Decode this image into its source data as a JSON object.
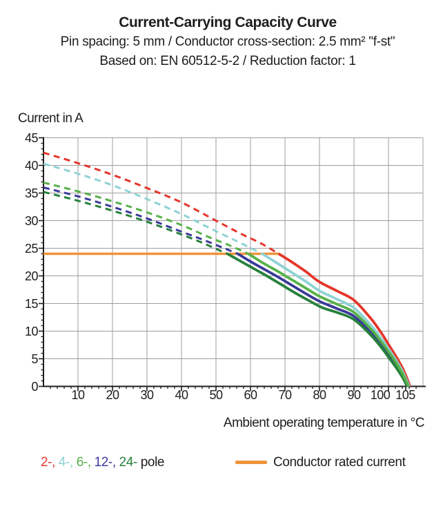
{
  "header": {
    "title": "Current-Carrying Capacity Curve",
    "subtitle1": "Pin spacing: 5 mm / Conductor cross-section: 2.5 mm² \"f-st\"",
    "subtitle2": "Based on: EN 60512-5-2 / Reduction factor: 1"
  },
  "chart_data": {
    "type": "line",
    "title": "Current-Carrying Capacity Curve",
    "ylabel": "Current in A",
    "xlabel": "Ambient operating temperature in °C",
    "xlim": [
      0,
      110
    ],
    "ylim": [
      0,
      45
    ],
    "grid": true,
    "x_ticks": [
      10,
      20,
      30,
      40,
      50,
      60,
      70,
      80,
      90,
      100,
      105
    ],
    "y_ticks": [
      0,
      5,
      10,
      15,
      20,
      25,
      30,
      35,
      40,
      45
    ],
    "axis_color": "#1d1d1b",
    "grid_color": "#9d9d9c",
    "rated_current": {
      "label": "Conductor rated current",
      "value_a": 24,
      "x_start": 0,
      "x_end": 68.4,
      "color": "#F0943A"
    },
    "series": [
      {
        "name": "2-pole",
        "legend_label": "2-",
        "color": "#E5362B",
        "dashed_points": [
          [
            0,
            42.3
          ],
          [
            10,
            40.4
          ],
          [
            20,
            38.3
          ],
          [
            30,
            35.9
          ],
          [
            40,
            33.3
          ],
          [
            50,
            30.0
          ],
          [
            57,
            27.7
          ],
          [
            63,
            25.9
          ],
          [
            68.2,
            24
          ]
        ],
        "solid_points": [
          [
            68.2,
            24
          ],
          [
            72,
            22.5
          ],
          [
            76,
            20.8
          ],
          [
            80,
            18.9
          ],
          [
            85,
            17.3
          ],
          [
            90,
            15.6
          ],
          [
            95,
            12.2
          ],
          [
            98,
            9.6
          ],
          [
            100,
            7.6
          ],
          [
            102,
            5.6
          ],
          [
            104,
            3.4
          ],
          [
            105.4,
            1.4
          ],
          [
            106.2,
            0
          ]
        ]
      },
      {
        "name": "4-pole",
        "legend_label": "4-",
        "color": "#8FD2D4",
        "dashed_points": [
          [
            0,
            40.3
          ],
          [
            10,
            38.5
          ],
          [
            20,
            36.4
          ],
          [
            30,
            33.9
          ],
          [
            40,
            31.2
          ],
          [
            48,
            28.7
          ],
          [
            56,
            26.3
          ],
          [
            63.4,
            24
          ]
        ],
        "solid_points": [
          [
            63.4,
            24
          ],
          [
            68,
            22.2
          ],
          [
            72,
            20.6
          ],
          [
            76,
            19.0
          ],
          [
            80,
            17.3
          ],
          [
            85,
            15.8
          ],
          [
            90,
            14.2
          ],
          [
            95,
            11.0
          ],
          [
            98,
            8.6
          ],
          [
            100,
            6.8
          ],
          [
            102,
            4.9
          ],
          [
            104,
            2.8
          ],
          [
            105.3,
            1.0
          ],
          [
            106,
            0
          ]
        ]
      },
      {
        "name": "6-pole",
        "legend_label": "6-",
        "color": "#56B14A",
        "dashed_points": [
          [
            0,
            36.9
          ],
          [
            10,
            35.3
          ],
          [
            20,
            33.5
          ],
          [
            30,
            31.5
          ],
          [
            40,
            29.2
          ],
          [
            48,
            27.0
          ],
          [
            54,
            25.5
          ],
          [
            59.4,
            24
          ]
        ],
        "solid_points": [
          [
            59.4,
            24
          ],
          [
            64,
            22.2
          ],
          [
            68,
            20.8
          ],
          [
            72,
            19.3
          ],
          [
            76,
            17.8
          ],
          [
            80,
            16.3
          ],
          [
            85,
            14.9
          ],
          [
            90,
            13.4
          ],
          [
            95,
            10.3
          ],
          [
            98,
            8.0
          ],
          [
            100,
            6.3
          ],
          [
            102,
            4.5
          ],
          [
            104,
            2.4
          ],
          [
            105.2,
            0.8
          ],
          [
            105.8,
            0
          ]
        ]
      },
      {
        "name": "12-pole",
        "legend_label": "12-",
        "color": "#3A3A9A",
        "dashed_points": [
          [
            0,
            36.0
          ],
          [
            10,
            34.4
          ],
          [
            20,
            32.5
          ],
          [
            30,
            30.4
          ],
          [
            40,
            28.0
          ],
          [
            46,
            26.6
          ],
          [
            52,
            25.1
          ],
          [
            56.3,
            24
          ]
        ],
        "solid_points": [
          [
            56.3,
            24
          ],
          [
            60,
            22.6
          ],
          [
            64,
            21.2
          ],
          [
            68,
            19.8
          ],
          [
            72,
            18.3
          ],
          [
            76,
            16.8
          ],
          [
            80,
            15.4
          ],
          [
            85,
            14.1
          ],
          [
            90,
            12.7
          ],
          [
            95,
            9.7
          ],
          [
            98,
            7.5
          ],
          [
            100,
            5.8
          ],
          [
            102,
            4.0
          ],
          [
            104,
            2.0
          ],
          [
            105.6,
            0
          ]
        ]
      },
      {
        "name": "24-pole",
        "legend_label": "24-",
        "color": "#27813C",
        "dashed_points": [
          [
            0,
            35.2
          ],
          [
            10,
            33.6
          ],
          [
            20,
            31.8
          ],
          [
            30,
            29.8
          ],
          [
            40,
            27.5
          ],
          [
            46,
            26.0
          ],
          [
            50,
            24.9
          ],
          [
            53.3,
            24
          ]
        ],
        "solid_points": [
          [
            53.3,
            24
          ],
          [
            57,
            22.7
          ],
          [
            61,
            21.3
          ],
          [
            65,
            19.9
          ],
          [
            69,
            18.4
          ],
          [
            73,
            16.9
          ],
          [
            77,
            15.5
          ],
          [
            81,
            14.2
          ],
          [
            85,
            13.4
          ],
          [
            90,
            12.1
          ],
          [
            95,
            9.2
          ],
          [
            98,
            7.0
          ],
          [
            100,
            5.3
          ],
          [
            102,
            3.6
          ],
          [
            104,
            1.7
          ],
          [
            105.4,
            0
          ]
        ]
      }
    ],
    "legend_suffix": " pole"
  }
}
